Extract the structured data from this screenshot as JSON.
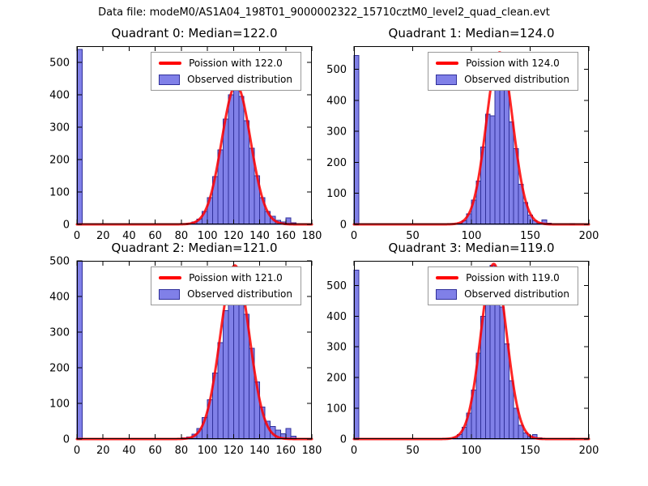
{
  "figure": {
    "title": "Data file: modeM0/AS1A04_198T01_9000002322_15710cztM0_level2_quad_clean.evt"
  },
  "colors": {
    "bar_fill": "#8080e8",
    "bar_edge": "#30309a",
    "curve": "#ff0000",
    "axes": "#000000",
    "legend_border": "#999999"
  },
  "chart_data": [
    {
      "type": "bar",
      "subtype": "histogram+line",
      "title": "Quadrant 0: Median=122.0",
      "median": 122.0,
      "legend": {
        "line_label": "Poission with 122.0",
        "patch_label": "Observed distribution"
      },
      "xlim": [
        0,
        180
      ],
      "ylim": [
        0,
        550
      ],
      "xticks": [
        0,
        20,
        40,
        60,
        80,
        100,
        120,
        140,
        160,
        180
      ],
      "yticks": [
        0,
        100,
        200,
        300,
        400,
        500
      ],
      "bin_width": 4,
      "bars": [
        [
          0,
          540
        ],
        [
          84,
          3
        ],
        [
          88,
          8
        ],
        [
          92,
          16
        ],
        [
          96,
          40
        ],
        [
          100,
          82
        ],
        [
          104,
          148
        ],
        [
          108,
          230
        ],
        [
          112,
          325
        ],
        [
          116,
          400
        ],
        [
          120,
          420
        ],
        [
          124,
          395
        ],
        [
          128,
          320
        ],
        [
          132,
          235
        ],
        [
          136,
          150
        ],
        [
          140,
          82
        ],
        [
          144,
          40
        ],
        [
          148,
          25
        ],
        [
          152,
          12
        ],
        [
          156,
          8
        ],
        [
          160,
          20
        ],
        [
          164,
          5
        ]
      ],
      "curve": {
        "shape": "gaussian",
        "mean": 122.0,
        "sigma": 11.0,
        "amplitude": 430
      }
    },
    {
      "type": "bar",
      "subtype": "histogram+line",
      "title": "Quadrant 1: Median=124.0",
      "median": 124.0,
      "legend": {
        "line_label": "Poission with 124.0",
        "patch_label": "Observed distribution"
      },
      "xlim": [
        0,
        200
      ],
      "ylim": [
        0,
        575
      ],
      "xticks": [
        0,
        50,
        100,
        150,
        200
      ],
      "yticks": [
        0,
        100,
        200,
        300,
        400,
        500
      ],
      "bin_width": 4,
      "bars": [
        [
          0,
          545
        ],
        [
          88,
          4
        ],
        [
          92,
          12
        ],
        [
          96,
          34
        ],
        [
          100,
          78
        ],
        [
          104,
          140
        ],
        [
          108,
          250
        ],
        [
          112,
          355
        ],
        [
          116,
          350
        ],
        [
          120,
          545
        ],
        [
          124,
          540
        ],
        [
          128,
          460
        ],
        [
          132,
          330
        ],
        [
          136,
          245
        ],
        [
          140,
          130
        ],
        [
          144,
          70
        ],
        [
          148,
          30
        ],
        [
          152,
          12
        ],
        [
          156,
          5
        ],
        [
          160,
          15
        ],
        [
          164,
          4
        ],
        [
          184,
          3
        ]
      ],
      "curve": {
        "shape": "gaussian",
        "mean": 124.0,
        "sigma": 11.1,
        "amplitude": 555
      }
    },
    {
      "type": "bar",
      "subtype": "histogram+line",
      "title": "Quadrant 2: Median=121.0",
      "median": 121.0,
      "legend": {
        "line_label": "Poission with 121.0",
        "patch_label": "Observed distribution"
      },
      "xlim": [
        0,
        180
      ],
      "ylim": [
        0,
        500
      ],
      "xticks": [
        0,
        20,
        40,
        60,
        80,
        100,
        120,
        140,
        160,
        180
      ],
      "yticks": [
        0,
        100,
        200,
        300,
        400,
        500
      ],
      "bin_width": 4,
      "bars": [
        [
          0,
          500
        ],
        [
          80,
          3
        ],
        [
          84,
          6
        ],
        [
          88,
          14
        ],
        [
          92,
          30
        ],
        [
          96,
          60
        ],
        [
          100,
          110
        ],
        [
          104,
          185
        ],
        [
          108,
          270
        ],
        [
          112,
          360
        ],
        [
          116,
          440
        ],
        [
          120,
          475
        ],
        [
          124,
          445
        ],
        [
          128,
          350
        ],
        [
          132,
          255
        ],
        [
          136,
          160
        ],
        [
          140,
          90
        ],
        [
          144,
          50
        ],
        [
          148,
          35
        ],
        [
          152,
          25
        ],
        [
          156,
          15
        ],
        [
          160,
          30
        ],
        [
          164,
          8
        ]
      ],
      "curve": {
        "shape": "gaussian",
        "mean": 121.0,
        "sigma": 11.0,
        "amplitude": 487
      }
    },
    {
      "type": "bar",
      "subtype": "histogram+line",
      "title": "Quadrant 3: Median=119.0",
      "median": 119.0,
      "legend": {
        "line_label": "Poission with 119.0",
        "patch_label": "Observed distribution"
      },
      "xlim": [
        0,
        200
      ],
      "ylim": [
        0,
        580
      ],
      "xticks": [
        0,
        50,
        100,
        150,
        200
      ],
      "yticks": [
        0,
        100,
        200,
        300,
        400,
        500
      ],
      "bin_width": 4,
      "bars": [
        [
          0,
          550
        ],
        [
          84,
          5
        ],
        [
          88,
          14
        ],
        [
          92,
          38
        ],
        [
          96,
          85
        ],
        [
          100,
          160
        ],
        [
          104,
          280
        ],
        [
          108,
          400
        ],
        [
          112,
          510
        ],
        [
          116,
          565
        ],
        [
          120,
          540
        ],
        [
          124,
          430
        ],
        [
          128,
          310
        ],
        [
          132,
          190
        ],
        [
          136,
          100
        ],
        [
          140,
          45
        ],
        [
          144,
          20
        ],
        [
          148,
          8
        ],
        [
          152,
          15
        ],
        [
          156,
          4
        ],
        [
          184,
          3
        ]
      ],
      "curve": {
        "shape": "gaussian",
        "mean": 119.0,
        "sigma": 10.9,
        "amplitude": 570
      }
    }
  ]
}
